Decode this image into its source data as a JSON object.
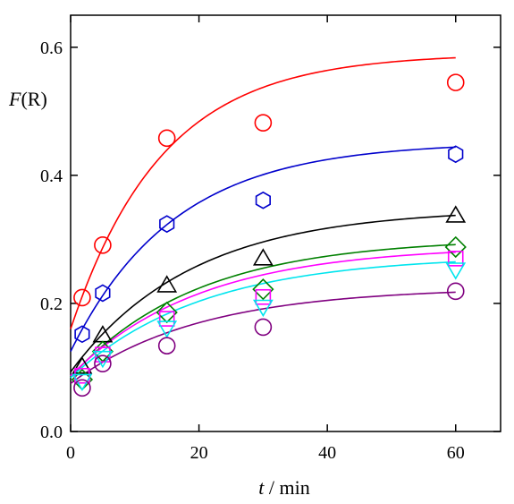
{
  "chart_data": {
    "type": "scatter",
    "title": "",
    "xlabel_italic": "t",
    "xlabel_rest": " / min",
    "ylabel_italic": "F",
    "ylabel_rest": "(R)",
    "xlim": [
      0,
      67
    ],
    "ylim": [
      0,
      0.65
    ],
    "x_ticks": [
      0,
      20,
      40,
      60
    ],
    "x_tick_labels": [
      "0",
      "20",
      "40",
      "60"
    ],
    "y_ticks": [
      0.0,
      0.2,
      0.4,
      0.6
    ],
    "y_tick_labels": [
      "0.0",
      "0.2",
      "0.4",
      "0.6"
    ],
    "grid": false,
    "legend": "none",
    "series": [
      {
        "color": "#ff0000",
        "marker": "circle",
        "x": [
          1.8,
          5,
          15,
          30,
          60
        ],
        "y": [
          0.209,
          0.291,
          0.458,
          0.482,
          0.545
        ],
        "fit": {
          "y0": 0.16,
          "ymax": 0.59,
          "k": 0.07
        }
      },
      {
        "color": "#0000cc",
        "marker": "hexagon",
        "x": [
          1.8,
          5,
          15,
          30,
          60
        ],
        "y": [
          0.152,
          0.216,
          0.324,
          0.361,
          0.433
        ],
        "fit": {
          "y0": 0.125,
          "ymax": 0.452,
          "k": 0.062
        }
      },
      {
        "color": "#000000",
        "marker": "triangle",
        "x": [
          1.8,
          5,
          15,
          30,
          60
        ],
        "y": [
          0.101,
          0.15,
          0.228,
          0.27,
          0.337
        ],
        "fit": {
          "y0": 0.093,
          "ymax": 0.348,
          "k": 0.053
        }
      },
      {
        "color": "#008000",
        "marker": "diamond",
        "x": [
          1.8,
          5,
          15,
          30,
          60
        ],
        "y": [
          0.081,
          0.125,
          0.186,
          0.222,
          0.288
        ],
        "fit": {
          "y0": 0.085,
          "ymax": 0.302,
          "k": 0.051
        }
      },
      {
        "color": "#ff00ff",
        "marker": "square",
        "x": [
          1.8,
          5,
          15,
          30,
          60
        ],
        "y": [
          0.087,
          0.12,
          0.176,
          0.21,
          0.27
        ],
        "fit": {
          "y0": 0.087,
          "ymax": 0.29,
          "k": 0.05
        }
      },
      {
        "color": "#00e5ee",
        "marker": "inv-triangle",
        "x": [
          1.8,
          5,
          15,
          30,
          60
        ],
        "y": [
          0.079,
          0.115,
          0.162,
          0.195,
          0.253
        ],
        "fit": {
          "y0": 0.084,
          "ymax": 0.275,
          "k": 0.049
        }
      },
      {
        "color": "#800080",
        "marker": "circle",
        "x": [
          1.8,
          5,
          15,
          30,
          60
        ],
        "y": [
          0.068,
          0.106,
          0.134,
          0.163,
          0.219
        ],
        "fit": {
          "y0": 0.075,
          "ymax": 0.225,
          "k": 0.05
        }
      }
    ]
  }
}
